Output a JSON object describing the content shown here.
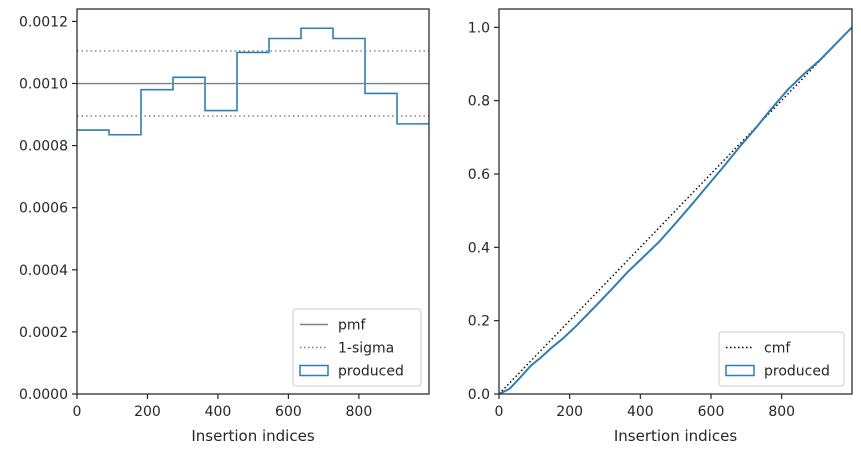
{
  "chart_data": [
    {
      "type": "histogram-step",
      "xlabel": "Insertion indices",
      "ylabel": "",
      "xlim": [
        0,
        999
      ],
      "ylim": [
        0,
        0.00124
      ],
      "xticks": [
        0,
        200,
        400,
        600,
        800
      ],
      "yticks": [
        "0.0000",
        "0.0002",
        "0.0004",
        "0.0006",
        "0.0008",
        "0.0010",
        "0.0012"
      ],
      "ytick_values": [
        0,
        0.0002,
        0.0004,
        0.0006,
        0.0008,
        0.001,
        0.0012
      ],
      "legend_position": "lower-right",
      "series": [
        {
          "name": "produced",
          "kind": "step",
          "color": "#2e7fb0",
          "bin_edges": [
            0,
            90.8,
            181.6,
            272.5,
            363.3,
            454.1,
            544.9,
            635.7,
            726.5,
            817.4,
            908.2,
            999
          ],
          "values": [
            0.00085,
            0.000835,
            0.00098,
            0.00102,
            0.000913,
            0.0011,
            0.001145,
            0.001178,
            0.001145,
            0.000968,
            0.00087
          ]
        },
        {
          "name": "pmf",
          "kind": "hline",
          "color": "#808080",
          "y": 0.001
        },
        {
          "name": "1-sigma",
          "kind": "hline-dotted-pair",
          "color": "#808080",
          "y": [
            0.000895,
            0.001105
          ]
        }
      ],
      "legend": [
        "pmf",
        "1-sigma",
        "produced"
      ]
    },
    {
      "type": "line",
      "xlabel": "Insertion indices",
      "ylabel": "",
      "xlim": [
        0,
        999
      ],
      "ylim": [
        0,
        1.05
      ],
      "xticks": [
        0,
        200,
        400,
        600,
        800
      ],
      "yticks": [
        "0.0",
        "0.2",
        "0.4",
        "0.6",
        "0.8",
        "1.0"
      ],
      "ytick_values": [
        0,
        0.2,
        0.4,
        0.6,
        0.8,
        1.0
      ],
      "legend_position": "lower-right",
      "series": [
        {
          "name": "cmf",
          "kind": "dotted-line",
          "color": "#000000",
          "x": [
            0,
            999
          ],
          "y": [
            0,
            1.0
          ]
        },
        {
          "name": "produced",
          "kind": "line",
          "color": "#2e7fb0",
          "x": [
            0,
            30,
            60,
            90,
            120,
            150,
            181.6,
            220,
            272.5,
            320,
            363.3,
            410,
            454.1,
            500,
            544.9,
            590,
            635.7,
            680,
            726.5,
            770,
            817.4,
            860,
            908.2,
            950,
            999
          ],
          "y": [
            0,
            0.014,
            0.045,
            0.077,
            0.101,
            0.127,
            0.152,
            0.187,
            0.239,
            0.287,
            0.332,
            0.375,
            0.416,
            0.466,
            0.516,
            0.568,
            0.62,
            0.673,
            0.725,
            0.777,
            0.83,
            0.87,
            0.911,
            0.952,
            1.0
          ]
        }
      ],
      "legend": [
        "cmf",
        "produced"
      ]
    }
  ]
}
